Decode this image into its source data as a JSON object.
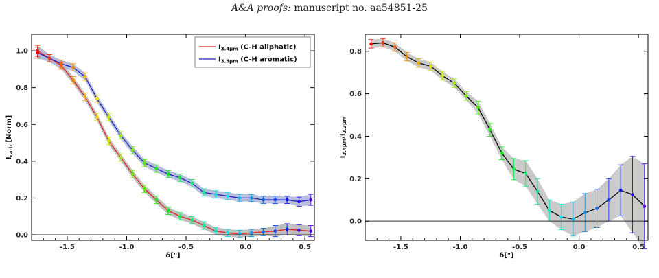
{
  "header": {
    "journal": "A&A proofs:",
    "rest": "manuscript no. aa54851-25"
  },
  "chart_data": [
    {
      "type": "line",
      "xlabel": "δ[\"]",
      "ylabel": "I",
      "ylabel_sub": "carb",
      "ylabel_suffix": " [Norm]",
      "xlim": [
        -1.8,
        0.58
      ],
      "ylim": [
        -0.03,
        1.09
      ],
      "xticks": [
        -1.5,
        -1.0,
        -0.5,
        0.0,
        0.5
      ],
      "xtick_labels": [
        "-1.5",
        "-1.0",
        "-0.5",
        "0.0",
        "0.5"
      ],
      "yticks": [
        0.0,
        0.2,
        0.4,
        0.6,
        0.8,
        1.0
      ],
      "ytick_labels": [
        "0.0",
        "0.2",
        "0.4",
        "0.6",
        "0.8",
        "1.0"
      ],
      "zero_line": true,
      "legend_position": "top-right",
      "x": [
        -1.75,
        -1.65,
        -1.55,
        -1.45,
        -1.35,
        -1.25,
        -1.15,
        -1.05,
        -0.95,
        -0.85,
        -0.75,
        -0.65,
        -0.55,
        -0.45,
        -0.35,
        -0.25,
        -0.15,
        -0.05,
        0.05,
        0.15,
        0.25,
        0.35,
        0.45,
        0.55
      ],
      "series": [
        {
          "name": "I",
          "name_sub": "3.4μm",
          "name_suffix": " (C-H aliphatic)",
          "color": "#e02020",
          "band": "#b8b8b8",
          "values": [
            1.0,
            0.96,
            0.92,
            0.84,
            0.75,
            0.64,
            0.51,
            0.42,
            0.33,
            0.25,
            0.19,
            0.13,
            0.1,
            0.08,
            0.05,
            0.02,
            0.01,
            0.005,
            0.01,
            0.015,
            0.02,
            0.03,
            0.025,
            0.02
          ],
          "errors": [
            0.03,
            0.02,
            0.02,
            0.02,
            0.02,
            0.02,
            0.02,
            0.02,
            0.02,
            0.02,
            0.02,
            0.02,
            0.02,
            0.02,
            0.02,
            0.02,
            0.02,
            0.02,
            0.02,
            0.02,
            0.03,
            0.03,
            0.03,
            0.03
          ]
        },
        {
          "name": "I",
          "name_sub": "3.3μm",
          "name_suffix": " (C-H aromatic)",
          "color": "#2020c0",
          "band": "#b0b8d8",
          "values": [
            0.99,
            0.96,
            0.93,
            0.91,
            0.86,
            0.74,
            0.64,
            0.54,
            0.46,
            0.39,
            0.36,
            0.33,
            0.31,
            0.28,
            0.23,
            0.22,
            0.21,
            0.2,
            0.2,
            0.19,
            0.19,
            0.19,
            0.18,
            0.19
          ],
          "errors": [
            0.03,
            0.02,
            0.02,
            0.02,
            0.02,
            0.02,
            0.02,
            0.02,
            0.02,
            0.02,
            0.02,
            0.02,
            0.02,
            0.02,
            0.02,
            0.02,
            0.02,
            0.02,
            0.02,
            0.02,
            0.02,
            0.02,
            0.025,
            0.03
          ]
        }
      ]
    },
    {
      "type": "line",
      "xlabel": "δ[\"]",
      "ylabel": "I",
      "ylabel_sub": "3.4μm",
      "ylabel_suffix": "/I",
      "ylabel_sub2": "3.3μm",
      "xlim": [
        -1.8,
        0.58
      ],
      "ylim": [
        -0.09,
        0.88
      ],
      "xticks": [
        -1.5,
        -1.0,
        -0.5,
        0.0,
        0.5
      ],
      "xtick_labels": [
        "-1.5",
        "-1.0",
        "-0.5",
        "0.0",
        "0.5"
      ],
      "yticks": [
        0.0,
        0.2,
        0.4,
        0.6,
        0.8
      ],
      "ytick_labels": [
        "0.0",
        "0.2",
        "0.4",
        "0.6",
        "0.8"
      ],
      "zero_line": true,
      "x": [
        -1.75,
        -1.65,
        -1.55,
        -1.45,
        -1.35,
        -1.25,
        -1.15,
        -1.05,
        -0.95,
        -0.85,
        -0.75,
        -0.65,
        -0.55,
        -0.45,
        -0.35,
        -0.25,
        -0.15,
        -0.05,
        0.05,
        0.15,
        0.25,
        0.35,
        0.45,
        0.55
      ],
      "series": [
        {
          "color": "#000000",
          "band": "#c4c4c4",
          "values": [
            0.835,
            0.84,
            0.82,
            0.775,
            0.745,
            0.73,
            0.685,
            0.65,
            0.59,
            0.535,
            0.43,
            0.32,
            0.245,
            0.225,
            0.14,
            0.05,
            0.02,
            0.01,
            0.04,
            0.06,
            0.1,
            0.145,
            0.125,
            0.07
          ],
          "errors": [
            0.02,
            0.02,
            0.02,
            0.02,
            0.02,
            0.02,
            0.02,
            0.02,
            0.02,
            0.03,
            0.03,
            0.03,
            0.05,
            0.06,
            0.06,
            0.05,
            0.06,
            0.08,
            0.09,
            0.09,
            0.1,
            0.12,
            0.18,
            0.2
          ]
        }
      ]
    }
  ]
}
